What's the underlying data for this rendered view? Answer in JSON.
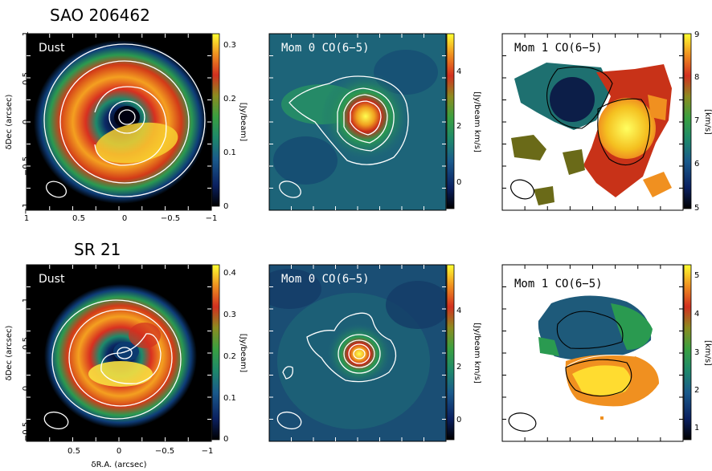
{
  "rows": [
    {
      "source_name": "SAO 206462"
    },
    {
      "source_name": "SR 21"
    }
  ],
  "chart_data": [
    {
      "type": "heatmap",
      "row": 0,
      "col": 0,
      "title": "Dust",
      "ylabel": "δDec (arcsec)",
      "xlim": [
        1,
        -1
      ],
      "ylim": [
        -1,
        1
      ],
      "xticks": [
        "1",
        "0.5",
        "0",
        "−0.5",
        "−1"
      ],
      "yticks": [
        "1",
        "0.5",
        "0",
        "−0.5",
        "−1"
      ],
      "colorbar": {
        "label": "[Jy/beam]",
        "range": [
          0,
          0.33
        ],
        "ticks": [
          "0",
          "0.1",
          "0.2",
          "0.3"
        ]
      },
      "colormap": "rainbow",
      "contour_color": "#ffffff",
      "beam": "ellipse-bottom-left"
    },
    {
      "type": "heatmap",
      "row": 0,
      "col": 1,
      "title": "Mom 0 CO(6−5)",
      "colorbar": {
        "label": "[Jy/beam km/s]",
        "range": [
          -1.2,
          5.6
        ],
        "ticks": [
          "0",
          "2",
          "4"
        ]
      },
      "colormap": "rainbow",
      "contour_color": "#ffffff",
      "beam": "ellipse-bottom-left"
    },
    {
      "type": "heatmap",
      "row": 0,
      "col": 2,
      "title": "Mom 1 CO(6−5)",
      "colorbar": {
        "label": "[km/s]",
        "range": [
          5,
          9
        ],
        "ticks": [
          "5",
          "6",
          "7",
          "8",
          "9"
        ]
      },
      "colormap": "rainbow",
      "contour_color": "#000000",
      "beam": "ellipse-bottom-left"
    },
    {
      "type": "heatmap",
      "row": 1,
      "col": 0,
      "title": "Dust",
      "xlabel": "δR.A. (arcsec)",
      "ylabel": "δDec (arcsec)",
      "xticks": [
        "0.5",
        "0",
        "−0.5",
        "−1"
      ],
      "yticks": [
        "1",
        "0.5",
        "0",
        "−0.5"
      ],
      "colorbar": {
        "label": "[Jy/beam]",
        "range": [
          0,
          0.42
        ],
        "ticks": [
          "0",
          "0.1",
          "0.2",
          "0.3",
          "0.4"
        ]
      },
      "colormap": "rainbow",
      "contour_color": "#ffffff",
      "beam": "ellipse-bottom-left"
    },
    {
      "type": "heatmap",
      "row": 1,
      "col": 1,
      "title": "Mom 0 CO(6−5)",
      "colorbar": {
        "label": "[Jy/beam km/s]",
        "range": [
          -1.2,
          5.6
        ],
        "ticks": [
          "0",
          "2",
          "4"
        ]
      },
      "colormap": "rainbow",
      "contour_color": "#ffffff",
      "beam": "ellipse-bottom-left"
    },
    {
      "type": "heatmap",
      "row": 1,
      "col": 2,
      "title": "Mom 1 CO(6−5)",
      "colorbar": {
        "label": "[km/s]",
        "range": [
          0.6,
          5.3
        ],
        "ticks": [
          "1",
          "2",
          "3",
          "4",
          "5"
        ]
      },
      "colormap": "rainbow",
      "contour_color": "#000000",
      "beam": "ellipse-bottom-left"
    }
  ]
}
